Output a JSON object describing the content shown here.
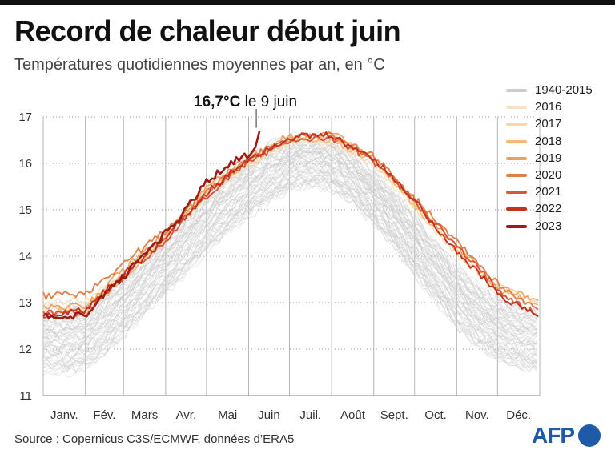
{
  "header": {
    "title": "Record de chaleur début juin",
    "subtitle": "Températures quotidiennes moyennes par an, en °C"
  },
  "footer": {
    "source": "Source : Copernicus C3S/ECMWF, données d’ERA5",
    "logo_text": "AFP"
  },
  "chart_data": {
    "type": "line",
    "title": "Record de chaleur début juin",
    "subtitle": "Températures quotidiennes moyennes par an, en °C",
    "x_unit": "jour de l'année",
    "ylim": [
      11,
      17
    ],
    "yticks": [
      11,
      12,
      13,
      14,
      15,
      16,
      17
    ],
    "y_tick_labels": [
      "11",
      "12",
      "13",
      "14",
      "15",
      "16",
      "17"
    ],
    "month_labels": [
      "Janv.",
      "Fév.",
      "Mars",
      "Avr.",
      "Mai",
      "Juin",
      "Juil.",
      "Août",
      "Sept.",
      "Oct.",
      "Nov.",
      "Déc."
    ],
    "grid": "vertical month lines, horizontal dotted lines",
    "legend_position": "right",
    "annotation": {
      "value_text": "16,7°C",
      "date_text": "le 9 juin",
      "day": 160,
      "value": 16.7
    },
    "background_band": {
      "name": "1940-2015",
      "color": "#cccccc",
      "x": [
        1,
        16,
        32,
        46,
        60,
        75,
        91,
        106,
        121,
        136,
        152,
        167,
        182,
        197,
        213,
        228,
        244,
        259,
        274,
        289,
        305,
        320,
        335,
        350,
        365
      ],
      "low": [
        11.55,
        11.5,
        11.6,
        11.9,
        12.3,
        12.75,
        13.2,
        13.65,
        14.1,
        14.5,
        14.85,
        15.2,
        15.45,
        15.55,
        15.45,
        15.15,
        14.7,
        14.2,
        13.6,
        13.05,
        12.5,
        12.1,
        11.8,
        11.6,
        11.55
      ],
      "high": [
        12.95,
        12.9,
        13.0,
        13.3,
        13.65,
        14.1,
        14.55,
        15.0,
        15.45,
        15.85,
        16.2,
        16.45,
        16.6,
        16.65,
        16.55,
        16.25,
        15.85,
        15.4,
        14.9,
        14.35,
        13.8,
        13.4,
        13.1,
        12.95,
        12.95
      ]
    },
    "series": [
      {
        "name": "2016",
        "color": "#f7e3c5",
        "x": [
          1,
          32,
          60,
          91,
          121,
          152,
          182,
          213,
          244,
          274,
          305,
          335,
          365
        ],
        "values": [
          13.0,
          13.05,
          13.55,
          14.35,
          15.25,
          15.95,
          16.45,
          16.45,
          15.95,
          15.05,
          14.05,
          13.3,
          12.95
        ]
      },
      {
        "name": "2017",
        "color": "#f8d7a5",
        "x": [
          1,
          32,
          60,
          91,
          121,
          152,
          182,
          213,
          244,
          274,
          305,
          335,
          365
        ],
        "values": [
          12.95,
          12.85,
          13.65,
          14.45,
          15.35,
          16.0,
          16.5,
          16.55,
          16.0,
          15.1,
          14.1,
          13.35,
          13.0
        ]
      },
      {
        "name": "2018",
        "color": "#f3b877",
        "x": [
          1,
          32,
          60,
          91,
          121,
          152,
          182,
          213,
          244,
          274,
          305,
          335,
          365
        ],
        "values": [
          12.85,
          12.75,
          13.55,
          14.4,
          15.4,
          16.05,
          16.55,
          16.5,
          16.05,
          15.1,
          14.05,
          13.25,
          12.95
        ]
      },
      {
        "name": "2019",
        "color": "#eea15c",
        "x": [
          1,
          32,
          60,
          91,
          121,
          152,
          182,
          213,
          244,
          274,
          305,
          335,
          365
        ],
        "values": [
          12.9,
          12.95,
          13.7,
          14.5,
          15.45,
          16.15,
          16.6,
          16.65,
          16.1,
          15.2,
          14.2,
          13.35,
          13.05
        ]
      },
      {
        "name": "2020",
        "color": "#e3804a",
        "x": [
          1,
          32,
          60,
          91,
          121,
          152,
          182,
          213,
          244,
          274,
          305,
          335,
          365
        ],
        "values": [
          13.15,
          13.2,
          13.85,
          14.55,
          15.4,
          16.1,
          16.55,
          16.6,
          16.15,
          15.25,
          14.35,
          13.4,
          12.85
        ]
      },
      {
        "name": "2021",
        "color": "#d9553a",
        "x": [
          1,
          32,
          60,
          91,
          121,
          152,
          182,
          213,
          244,
          274,
          305,
          335,
          365
        ],
        "values": [
          12.75,
          12.8,
          13.55,
          14.35,
          15.3,
          16.05,
          16.5,
          16.55,
          16.05,
          15.2,
          14.2,
          13.3,
          12.7
        ]
      },
      {
        "name": "2022",
        "color": "#c4321f",
        "x": [
          1,
          32,
          60,
          91,
          121,
          152,
          182,
          213,
          244,
          274,
          305,
          335,
          365
        ],
        "values": [
          12.7,
          12.85,
          13.6,
          14.4,
          15.35,
          16.1,
          16.55,
          16.6,
          16.1,
          15.2,
          14.1,
          13.2,
          12.7
        ]
      },
      {
        "name": "2023",
        "color": "#9e1b14",
        "x": [
          1,
          16,
          32,
          46,
          60,
          75,
          91,
          106,
          121,
          136,
          152,
          157,
          160
        ],
        "values": [
          12.7,
          12.65,
          12.75,
          13.2,
          13.55,
          14.05,
          14.5,
          15.0,
          15.6,
          15.95,
          16.2,
          16.35,
          16.7
        ]
      }
    ]
  }
}
